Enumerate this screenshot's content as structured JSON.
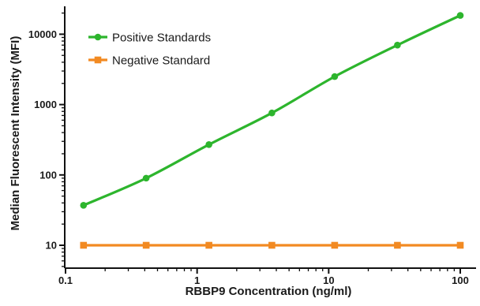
{
  "chart_data": {
    "type": "line",
    "xlabel": "RBBP9 Concentration (ng/ml)",
    "ylabel": "Median Fluorescent Intensity (MFI)",
    "xscale": "log",
    "yscale": "log",
    "xlim": [
      0.1,
      100
    ],
    "ylim": [
      5,
      20000
    ],
    "xticks": [
      0.1,
      1,
      10,
      100
    ],
    "xtick_labels": [
      "0.1",
      "1",
      "10",
      "100"
    ],
    "yticks": [
      10,
      100,
      1000,
      10000
    ],
    "ytick_labels": [
      "10",
      "100",
      "1000",
      "10000"
    ],
    "grid": false,
    "legend_position": "top-left",
    "series": [
      {
        "name": "Positive Standards",
        "color": "#2db52d",
        "marker": "circle",
        "x": [
          0.137,
          0.41,
          1.23,
          3.7,
          11.1,
          33.3,
          100
        ],
        "y": [
          37,
          90,
          270,
          760,
          2500,
          7000,
          18500
        ]
      },
      {
        "name": "Negative Standard",
        "color": "#f28a22",
        "marker": "square",
        "x": [
          0.137,
          0.41,
          1.23,
          3.7,
          11.1,
          33.3,
          100
        ],
        "y": [
          10,
          10,
          10,
          10,
          10,
          10,
          10
        ]
      }
    ]
  }
}
